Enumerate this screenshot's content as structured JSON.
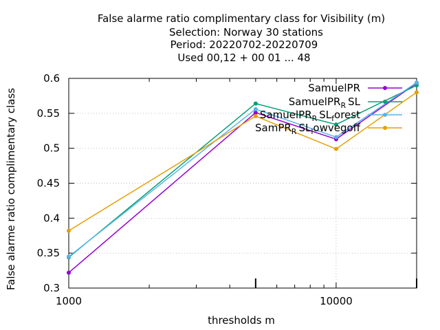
{
  "chart_data": {
    "type": "line",
    "title_lines": [
      "False alarme ratio complimentary class  for Visibility (m)",
      "Selection: Norway     30 stations",
      "Period: 20220702-20220709",
      "Used  00,12  + 00 01 ... 48"
    ],
    "xlabel": "thresholds m",
    "ylabel": "False alarme ratio complimentary class",
    "x_scale": "log",
    "xlim": [
      1000,
      20000
    ],
    "ylim": [
      0.3,
      0.6
    ],
    "x_ticks": [
      1000,
      10000
    ],
    "x_tick_labels": [
      "1000",
      "10000"
    ],
    "y_ticks": [
      0.3,
      0.35,
      0.4,
      0.45,
      0.5,
      0.55,
      0.6
    ],
    "y_tick_labels": [
      "0.3",
      "0.35",
      "0.4",
      "0.45",
      "0.5",
      "0.55",
      "0.6"
    ],
    "grid": true,
    "legend_position": "top-right",
    "x": [
      1000,
      5000,
      10000,
      20000
    ],
    "series": [
      {
        "name": "SamuelPR",
        "legend_base": "SamuelPR",
        "legend_sub": "",
        "legend_rest": "",
        "legend_sub2": "",
        "legend_rest2": "",
        "color": "#9400d3",
        "values": [
          0.322,
          0.551,
          0.513,
          0.593
        ]
      },
      {
        "name": "SamuelPR_R SL",
        "legend_base": "SamuelPR",
        "legend_sub": "R",
        "legend_rest": "SL",
        "legend_sub2": "",
        "legend_rest2": "",
        "color": "#009e73",
        "values": [
          0.344,
          0.564,
          0.534,
          0.59
        ]
      },
      {
        "name": "SamuelPR_R SL_forest",
        "legend_base": "SamuelPR",
        "legend_sub": "R",
        "legend_rest": "SL",
        "legend_sub2": "f",
        "legend_rest2": "orest",
        "color": "#56b4e9",
        "values": [
          0.345,
          0.556,
          0.516,
          0.594
        ]
      },
      {
        "name": "SamPR_R SL_lowvegoff",
        "legend_base": "SamPR",
        "legend_sub": "R",
        "legend_rest": "SL",
        "legend_sub2": "l",
        "legend_rest2": "owvegoff",
        "color": "#e69f00",
        "values": [
          0.382,
          0.546,
          0.499,
          0.58
        ]
      }
    ]
  }
}
